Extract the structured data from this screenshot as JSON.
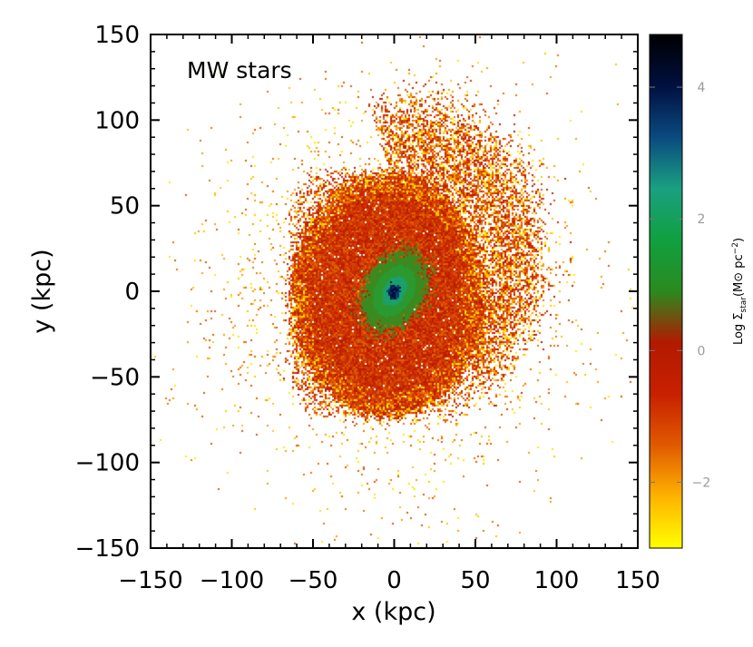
{
  "chart_data": {
    "type": "heatmap",
    "title": "",
    "annotation": "MW stars",
    "xlabel": "x (kpc)",
    "ylabel": "y (kpc)",
    "xlim": [
      -150,
      150
    ],
    "ylim": [
      -150,
      150
    ],
    "x_ticks": [
      "−150",
      "−100",
      "−50",
      "0",
      "50",
      "100",
      "150"
    ],
    "x_tick_values": [
      -150,
      -100,
      -50,
      0,
      50,
      100,
      150
    ],
    "y_ticks": [
      "150",
      "100",
      "50",
      "0",
      "−50",
      "−100",
      "−150"
    ],
    "y_tick_values": [
      150,
      100,
      50,
      0,
      -50,
      -100,
      -150
    ],
    "colorbar": {
      "label": "Log Σstar(M⊙ pc⁻²)",
      "label_text": "Log Σ",
      "label_sub": "star",
      "label_units": "(M⊙ pc",
      "label_sup": "−2",
      "label_close": ")",
      "range": [
        -3,
        4.8
      ],
      "ticks": [
        "4",
        "2",
        "0",
        "−2"
      ],
      "tick_values": [
        4,
        2,
        0,
        -2
      ],
      "colormap": [
        "#ffff00",
        "#ffb300",
        "#e05a00",
        "#c82000",
        "#b21a00",
        "#2a8a1f",
        "#10a040",
        "#1aa080",
        "#0a4a80",
        "#001040",
        "#000000"
      ]
    },
    "structures": [
      {
        "name": "core",
        "x": 0,
        "y": 0,
        "log_sigma": 4.5
      },
      {
        "name": "disk",
        "x": 0,
        "y": 0,
        "semi_major": 20,
        "semi_minor": 14,
        "angle_deg": 55,
        "log_sigma": 1.8
      },
      {
        "name": "inner halo",
        "x": 0,
        "y": 0,
        "extent_x": [
          -60,
          55
        ],
        "extent_y": [
          -75,
          70
        ],
        "log_sigma": 0.3
      },
      {
        "name": "outer halo",
        "extent_x": [
          -120,
          120
        ],
        "extent_y": [
          -120,
          120
        ],
        "log_sigma": -1.5
      },
      {
        "name": "stream",
        "x": 55,
        "y": 55,
        "extent_x": [
          20,
          95
        ],
        "extent_y": [
          -50,
          125
        ],
        "log_sigma": -1.0
      }
    ]
  }
}
